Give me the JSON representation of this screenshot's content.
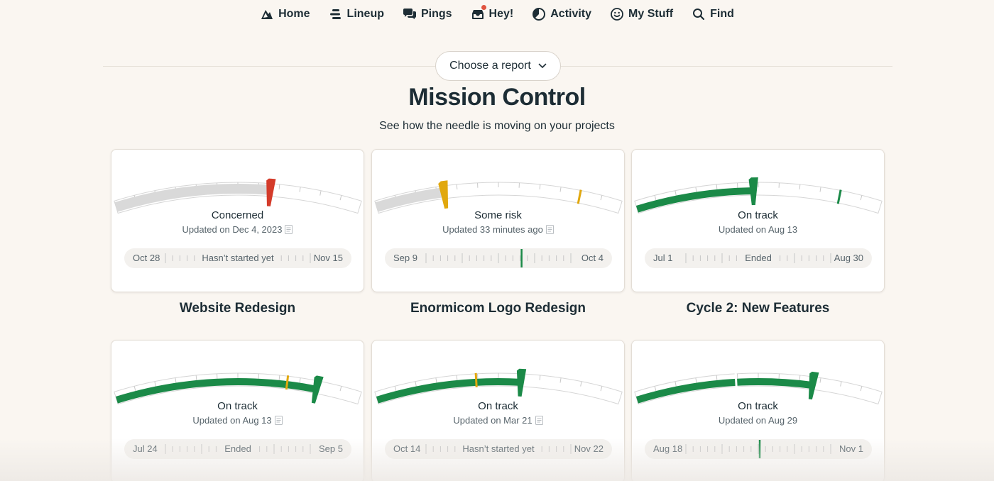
{
  "nav": {
    "items": [
      {
        "label": "Home",
        "icon": "basecamp-mountain-icon"
      },
      {
        "label": "Lineup",
        "icon": "lineup-icon"
      },
      {
        "label": "Pings",
        "icon": "chat-bubbles-icon"
      },
      {
        "label": "Hey!",
        "icon": "inbox-icon",
        "badge": true
      },
      {
        "label": "Activity",
        "icon": "activity-pie-icon"
      },
      {
        "label": "My Stuff",
        "icon": "smiley-icon"
      },
      {
        "label": "Find",
        "icon": "search-icon"
      }
    ],
    "badge_color": "#e0533f"
  },
  "report_selector": {
    "label": "Choose a report"
  },
  "header": {
    "title": "Mission Control",
    "subtitle": "See how the needle is moving on your projects"
  },
  "colors": {
    "concerned": "#d43b2a",
    "some_risk": "#e1a80e",
    "on_track": "#1b8a48",
    "fill_gray": "#d9d9d9",
    "track_border": "#d6d6d6"
  },
  "projects": [
    {
      "name": "Website Redesign",
      "status": "Concerned",
      "status_key": "concerned",
      "updated": "Updated on Dec 4, 2023",
      "needle": 0.63,
      "marker": null,
      "fill": "gray",
      "timeline": {
        "start": "Oct 28",
        "end": "Nov 15",
        "label": "Hasn’t started yet",
        "today": null
      }
    },
    {
      "name": "Enormicom Logo Redesign",
      "status": "Some risk",
      "status_key": "some_risk",
      "updated": "Updated 33 minutes ago",
      "needle": 0.28,
      "marker": 0.83,
      "fill": "gray",
      "timeline": {
        "start": "Sep 9",
        "end": "Oct 4",
        "label": "",
        "today": 0.66
      }
    },
    {
      "name": "Cycle 2: New Features",
      "status": "On track",
      "status_key": "on_track",
      "updated": "Updated on Aug 13",
      "needle": 0.48,
      "marker": 0.83,
      "fill": "color",
      "timeline": {
        "start": "Jul 1",
        "end": "Aug 30",
        "label": "Ended",
        "today": null
      }
    },
    {
      "name": "",
      "status": "On track",
      "status_key": "on_track",
      "updated": "Updated on Aug 13",
      "needle": 0.82,
      "marker": 0.7,
      "fill": "color",
      "timeline": {
        "start": "Jul 24",
        "end": "Sep 5",
        "label": "Ended",
        "today": null
      }
    },
    {
      "name": "",
      "status": "On track",
      "status_key": "on_track",
      "updated": "Updated on Mar 21",
      "needle": 0.59,
      "marker": 0.41,
      "fill": "color",
      "timeline": {
        "start": "Oct 14",
        "end": "Nov 22",
        "label": "Hasn’t started yet",
        "today": null
      }
    },
    {
      "name": "",
      "status": "On track",
      "status_key": "on_track",
      "updated": "Updated on Aug 29",
      "needle": 0.72,
      "marker": 0.41,
      "fill": "color",
      "timeline": {
        "start": "Aug 18",
        "end": "Nov 1",
        "label": "",
        "today": 0.51
      }
    }
  ]
}
